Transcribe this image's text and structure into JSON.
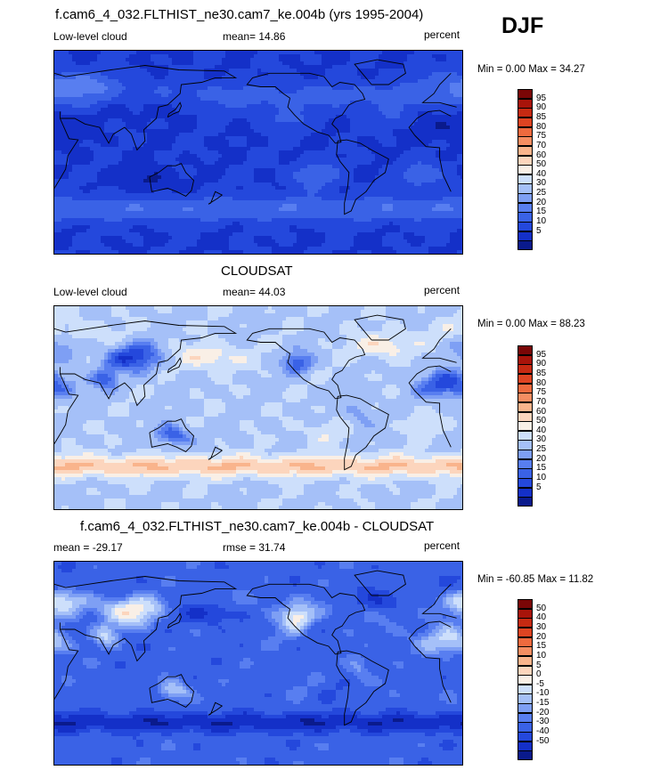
{
  "season": "DJF",
  "palettes": {
    "main": [
      "#0a1a8c",
      "#1430c8",
      "#2448dc",
      "#3a62e6",
      "#587ef0",
      "#7e9ff4",
      "#a5c0f8",
      "#cddffb",
      "#f9efe6",
      "#fcd5bd",
      "#f9b48c",
      "#f58e62",
      "#ee6a3e",
      "#de4422",
      "#c62a12",
      "#a8140a",
      "#7a0606"
    ],
    "diff": [
      "#0a1a8c",
      "#1430c8",
      "#2448dc",
      "#3a62e6",
      "#587ef0",
      "#7e9ff4",
      "#a5c0f8",
      "#cddffb",
      "#f9efe6",
      "#fcd5bd",
      "#f9b48c",
      "#f58e62",
      "#ee6a3e",
      "#de4422",
      "#c62a12",
      "#a8140a",
      "#7a0606"
    ]
  },
  "chart_data": [
    {
      "type": "heatmap",
      "title": "f.cam6_4_032.FLTHIST_ne30.cam7_ke.004b (yrs 1995-2004)",
      "left_label": "Low-level cloud",
      "stat_label": "mean=  14.86",
      "mean": 14.86,
      "units": "percent",
      "min": 0.0,
      "max": 34.27,
      "minmax_text": "Min =   0.00 Max =  34.27",
      "colorbar_levels": [
        "95",
        "90",
        "85",
        "80",
        "75",
        "70",
        "60",
        "50",
        "40",
        "30",
        "25",
        "20",
        "15",
        "10",
        "5"
      ],
      "field": "model"
    },
    {
      "type": "heatmap",
      "title": "CLOUDSAT",
      "left_label": "Low-level cloud",
      "stat_label": "mean=  44.03",
      "mean": 44.03,
      "units": "percent",
      "min": 0.0,
      "max": 88.23,
      "minmax_text": "Min =   0.00 Max =  88.23",
      "colorbar_levels": [
        "95",
        "90",
        "85",
        "80",
        "75",
        "70",
        "60",
        "50",
        "40",
        "30",
        "25",
        "20",
        "15",
        "10",
        "5"
      ],
      "field": "obs"
    },
    {
      "type": "heatmap",
      "title": "f.cam6_4_032.FLTHIST_ne30.cam7_ke.004b - CLOUDSAT",
      "left_label": "mean = -29.17",
      "stat_label": "rmse =  31.74",
      "mean": -29.17,
      "rmse": 31.74,
      "units": "percent",
      "min": -60.85,
      "max": 11.82,
      "minmax_text": "Min = -60.85 Max =  11.82",
      "colorbar_levels": [
        "50",
        "40",
        "30",
        "20",
        "15",
        "10",
        "5",
        "0",
        "-5",
        "-10",
        "-15",
        "-20",
        "-30",
        "-40",
        "-50"
      ],
      "field": "diff"
    }
  ]
}
